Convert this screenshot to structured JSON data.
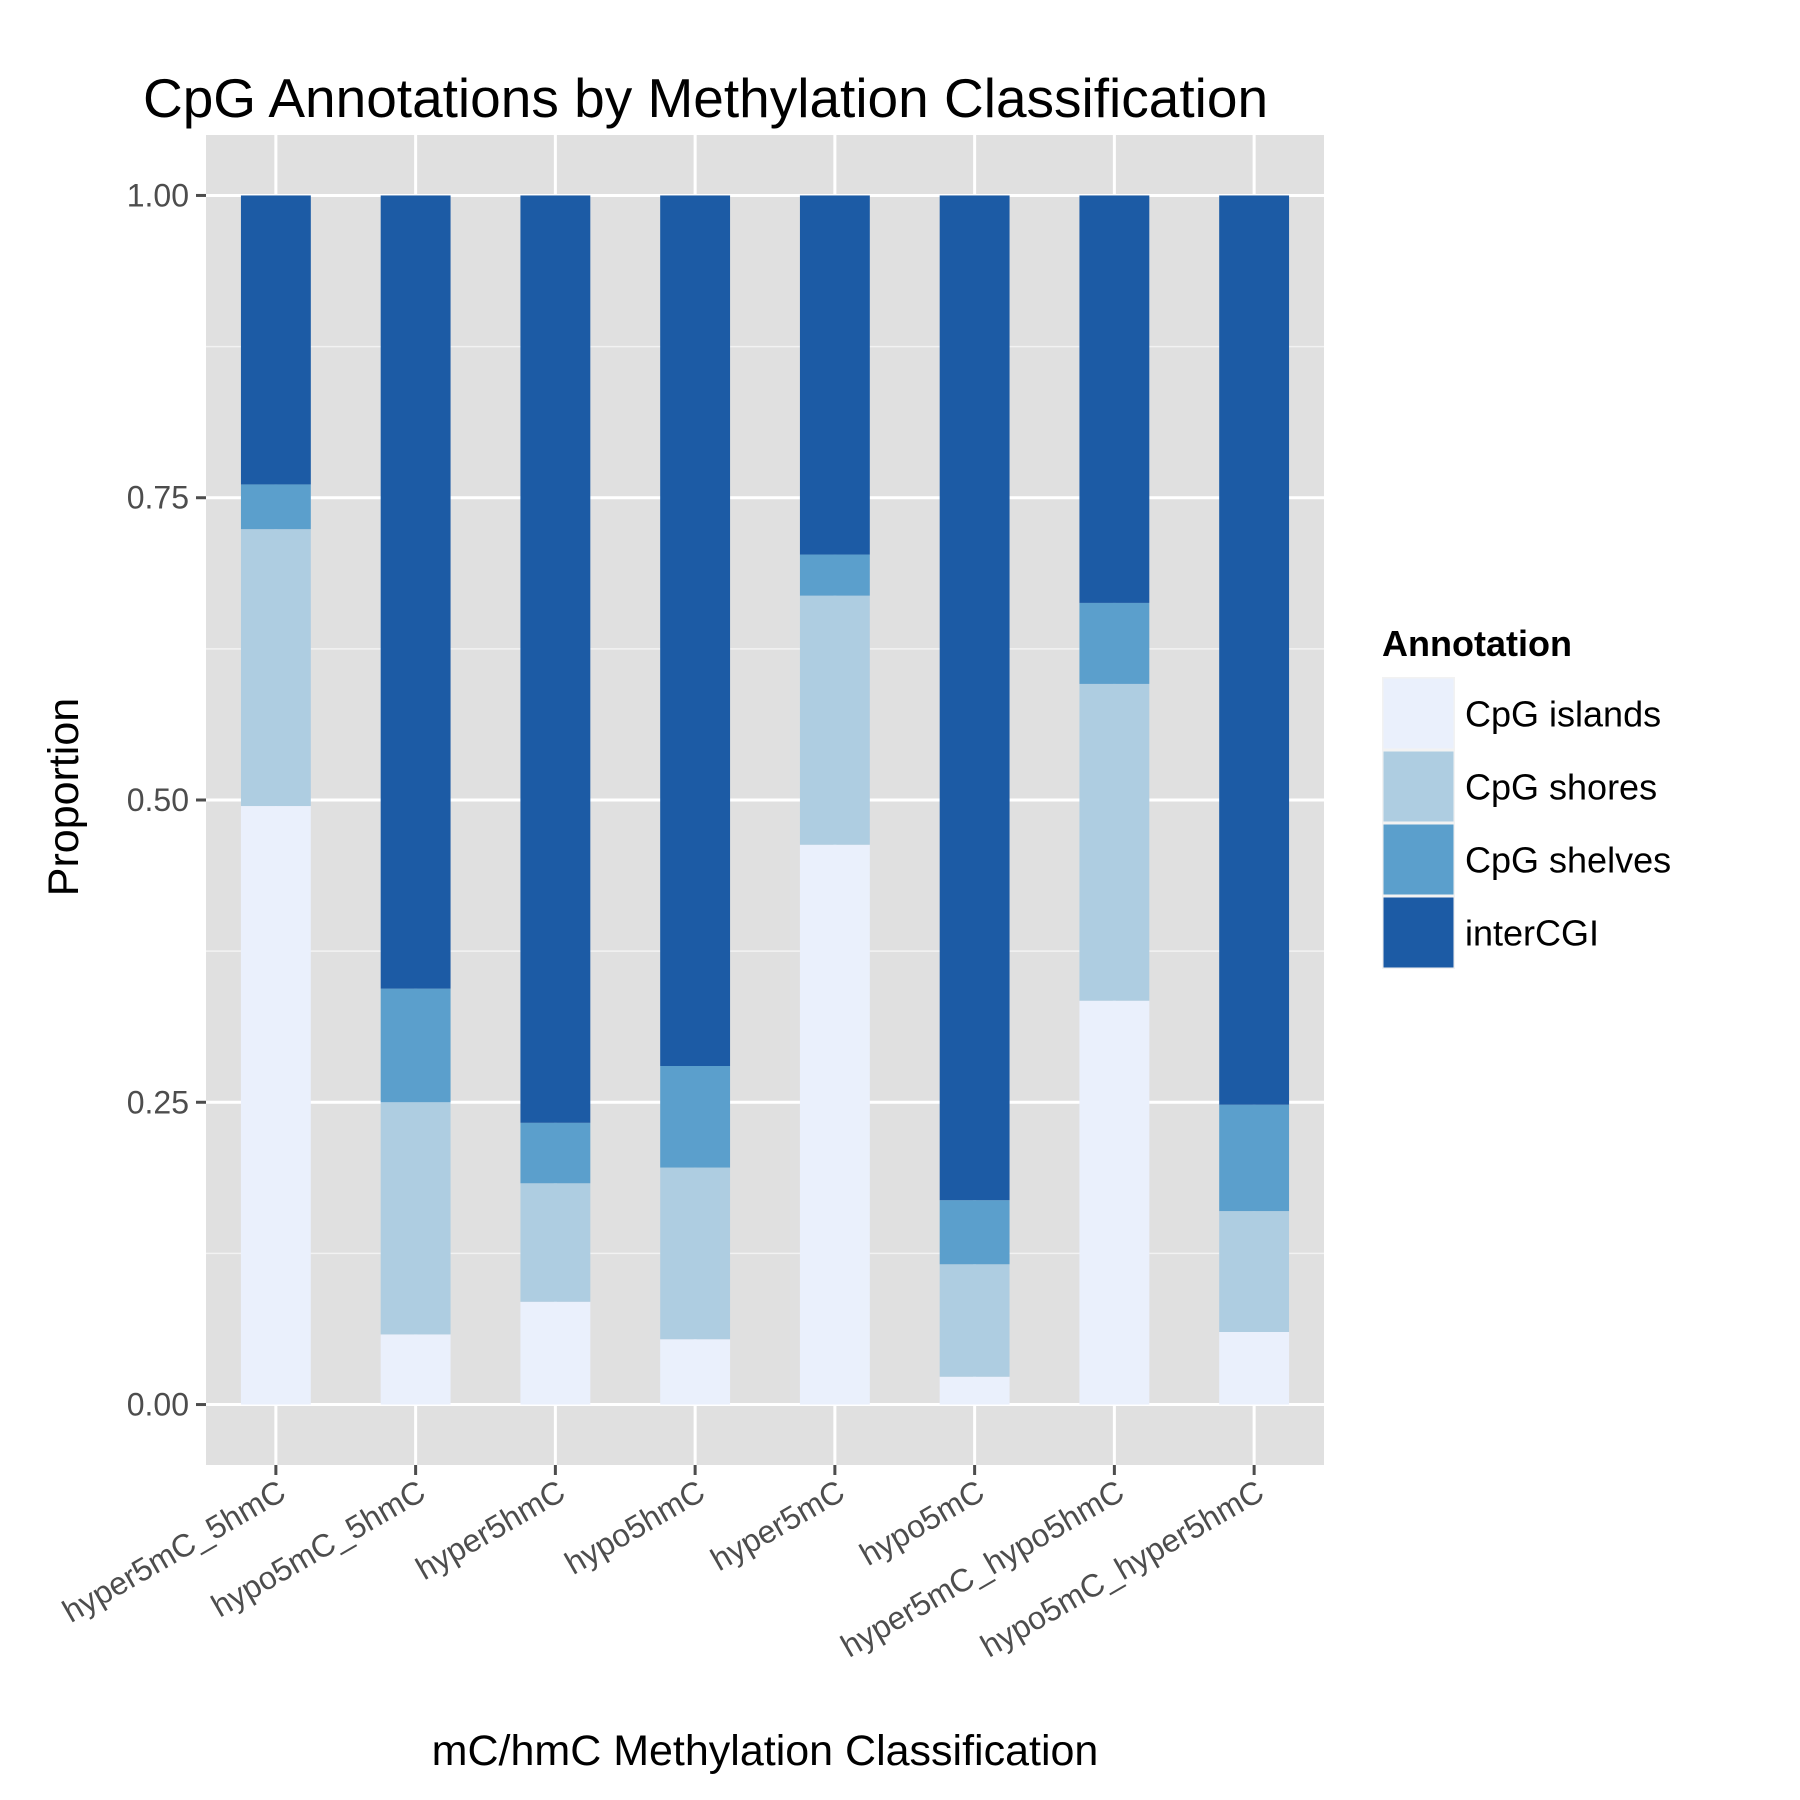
{
  "colors": {
    "panel_background": "#e0e0e0",
    "gridline": "#ffffff",
    "tick": "#4d4d4d"
  },
  "chart_data": {
    "type": "bar",
    "stacked": true,
    "title": "CpG Annotations by Methylation Classification",
    "xlabel": "mC/hmC Methylation Classification",
    "ylabel": "Proportion",
    "ylim": [
      -0.05,
      1.05
    ],
    "yticks": [
      0.0,
      0.25,
      0.5,
      0.75,
      1.0
    ],
    "ytick_labels": [
      "0.00",
      "0.25",
      "0.50",
      "0.75",
      "1.00"
    ],
    "grid": true,
    "legend": {
      "title": "Annotation",
      "position": "right"
    },
    "categories": [
      "hyper5mC_5hmC",
      "hypo5mC_5hmC",
      "hyper5hmC",
      "hypo5hmC",
      "hyper5mC",
      "hypo5mC",
      "hyper5mC_hypo5hmC",
      "hypo5mC_hyper5hmC"
    ],
    "series": [
      {
        "name": "CpG islands",
        "color": "#eaf0fc",
        "values": [
          0.495,
          0.058,
          0.085,
          0.054,
          0.463,
          0.023,
          0.334,
          0.06
        ]
      },
      {
        "name": "CpG shores",
        "color": "#aecde1",
        "values": [
          0.229,
          0.192,
          0.098,
          0.142,
          0.206,
          0.093,
          0.262,
          0.1
        ]
      },
      {
        "name": "CpG shelves",
        "color": "#5b9fcc",
        "values": [
          0.037,
          0.094,
          0.05,
          0.084,
          0.034,
          0.053,
          0.067,
          0.088
        ]
      },
      {
        "name": "interCGI",
        "color": "#1c5ba5",
        "values": [
          0.239,
          0.656,
          0.767,
          0.72,
          0.297,
          0.831,
          0.337,
          0.752
        ]
      }
    ]
  }
}
